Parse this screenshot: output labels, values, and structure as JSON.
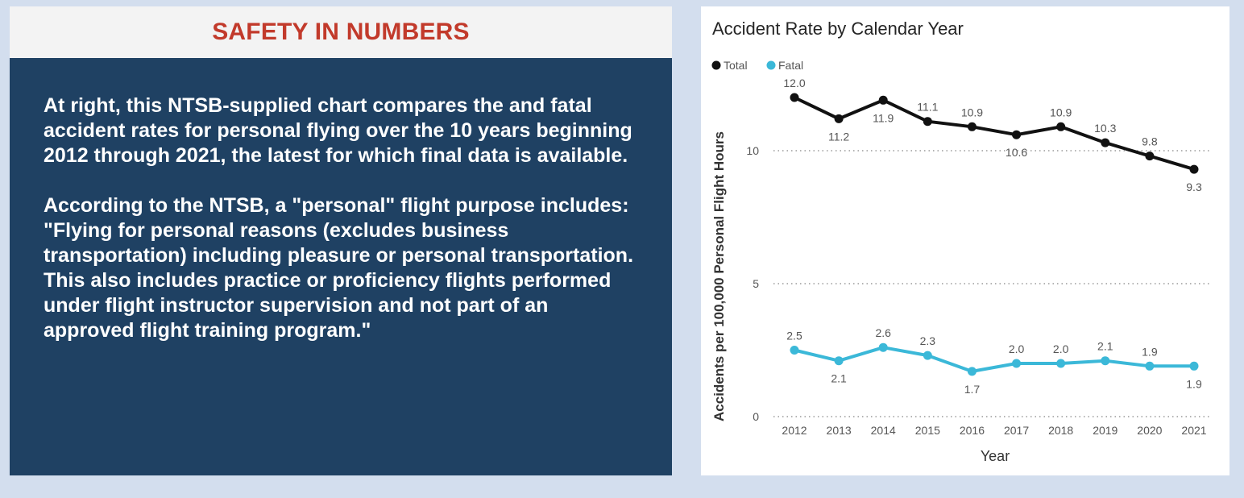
{
  "panel": {
    "heading": "SAFETY IN NUMBERS",
    "paragraphs": [
      "At right, this NTSB-supplied chart compares the and fatal accident rates for personal flying over the 10 years beginning 2012 through 2021, the latest for which final data is available.",
      "According to the NTSB, a \"personal\" flight purpose includes: \"Flying for personal reasons (excludes business transportation) including pleasure or personal transportation. This also includes practice or proficiency flights performed under flight instructor supervision and not part of an approved flight training program.\""
    ]
  },
  "chart_data": {
    "type": "line",
    "title": "Accident Rate by Calendar Year",
    "xlabel": "Year",
    "ylabel": "Accidents per 100,000 Personal Flight Hours",
    "categories": [
      "2012",
      "2013",
      "2014",
      "2015",
      "2016",
      "2017",
      "2018",
      "2019",
      "2020",
      "2021"
    ],
    "series": [
      {
        "name": "Total",
        "color": "#111111",
        "values": [
          12.0,
          11.2,
          11.9,
          11.1,
          10.9,
          10.6,
          10.9,
          10.3,
          9.8,
          9.3
        ],
        "labels": [
          "12.0",
          "11.2",
          "11.9",
          "11.1",
          "10.9",
          "10.6",
          "10.9",
          "10.3",
          "9.8",
          "9.3"
        ]
      },
      {
        "name": "Fatal",
        "color": "#3bb8d8",
        "values": [
          2.5,
          2.1,
          2.6,
          2.3,
          1.7,
          2.0,
          2.0,
          2.1,
          1.9,
          1.9
        ],
        "labels": [
          "2.5",
          "2.1",
          "2.6",
          "2.3",
          "1.7",
          "2.0",
          "2.0",
          "2.1",
          "1.9",
          "1.9"
        ]
      }
    ],
    "yticks": [
      0,
      5,
      10
    ],
    "ylim": [
      0,
      12.5
    ],
    "grid": true,
    "legend": "top-left"
  }
}
